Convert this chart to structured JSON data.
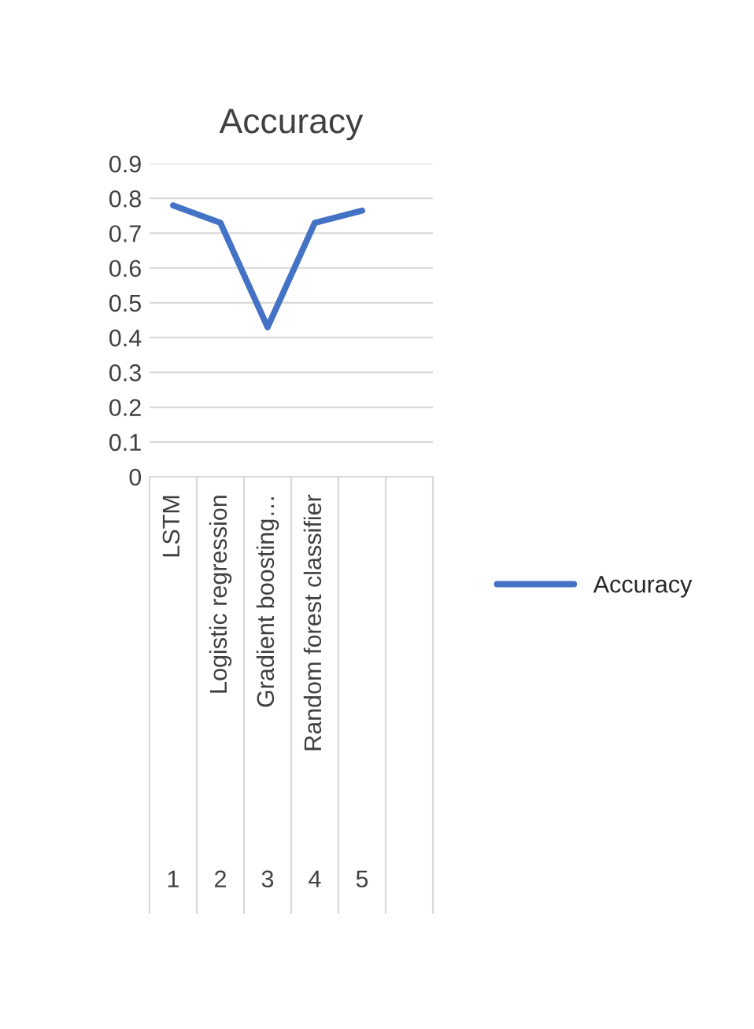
{
  "chart_data": {
    "type": "line",
    "title": "Accuracy",
    "categories": [
      "LSTM",
      "Logistic regression",
      "Gradient boosting…",
      "Random forest classifier",
      null,
      null
    ],
    "series": [
      {
        "name": "Accuracy",
        "color": "#4472c4",
        "values": [
          0.78,
          0.73,
          0.43,
          0.73,
          0.765,
          null
        ]
      }
    ],
    "annotations": [
      "1",
      "2",
      "3",
      "4",
      "5"
    ],
    "ylim": [
      0,
      0.9
    ],
    "yticks": [
      0,
      0.1,
      0.2,
      0.3,
      0.4,
      0.5,
      0.6,
      0.7,
      0.8,
      0.9
    ],
    "grid": "y",
    "legend": "right",
    "marker": "none",
    "line_style": "solid"
  }
}
